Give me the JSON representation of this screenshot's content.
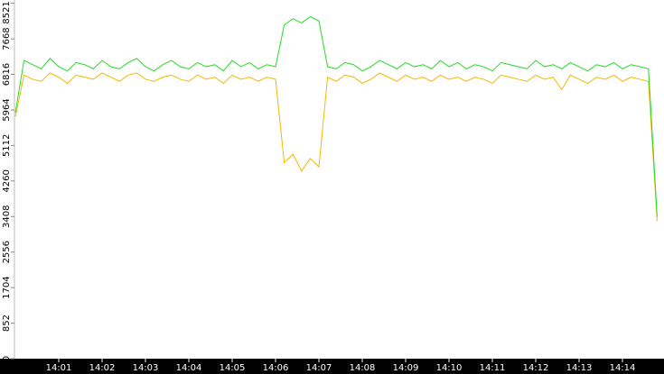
{
  "chart_data": {
    "type": "line",
    "categories": [
      null,
      null,
      null,
      null,
      null,
      "14:01",
      null,
      null,
      null,
      null,
      "14:02",
      null,
      null,
      null,
      null,
      "14:03",
      null,
      null,
      null,
      null,
      "14:04",
      null,
      null,
      null,
      null,
      "14:05",
      null,
      null,
      null,
      null,
      "14:06",
      null,
      null,
      null,
      null,
      "14:07",
      null,
      null,
      null,
      null,
      "14:08",
      null,
      null,
      null,
      null,
      "14:09",
      null,
      null,
      null,
      null,
      "14:10",
      null,
      null,
      null,
      null,
      "14:11",
      null,
      null,
      null,
      null,
      "14:12",
      null,
      null,
      null,
      null,
      "14:13",
      null,
      null,
      null,
      null,
      "14:14",
      null,
      null,
      null,
      null
    ],
    "series": [
      {
        "color": "#f5b800",
        "values": [
          5800,
          6800,
          6700,
          6650,
          6850,
          6750,
          6600,
          6800,
          6750,
          6700,
          6850,
          6750,
          6650,
          6800,
          6850,
          6700,
          6650,
          6750,
          6800,
          6700,
          6650,
          6800,
          6700,
          6750,
          6600,
          6800,
          6700,
          6750,
          6650,
          6750,
          6700,
          4700,
          4900,
          4500,
          4800,
          4600,
          6750,
          6650,
          6800,
          6750,
          6600,
          6700,
          6850,
          6750,
          6650,
          6800,
          6700,
          6750,
          6650,
          6800,
          6700,
          6750,
          6650,
          6750,
          6700,
          6600,
          6800,
          6750,
          6700,
          6650,
          6800,
          6700,
          6750,
          6450,
          6800,
          6700,
          6600,
          6750,
          6700,
          6800,
          6650,
          6750,
          6700,
          6650,
          3300
        ]
      },
      {
        "color": "#22dd22",
        "values": [
          5900,
          7150,
          7050,
          6950,
          7200,
          7000,
          6900,
          7100,
          7050,
          6950,
          7150,
          7000,
          6950,
          7100,
          7200,
          7000,
          6900,
          7050,
          7150,
          7000,
          6950,
          7100,
          7000,
          7050,
          6900,
          7150,
          7000,
          7100,
          6950,
          7050,
          7000,
          8000,
          8150,
          8050,
          8200,
          8100,
          7000,
          6950,
          7100,
          7050,
          6900,
          7000,
          7150,
          7050,
          6950,
          7100,
          7000,
          7050,
          6950,
          7150,
          7000,
          7100,
          6950,
          7050,
          7000,
          6900,
          7100,
          7050,
          7000,
          6950,
          7150,
          7000,
          7050,
          6950,
          7100,
          7000,
          6900,
          7050,
          7000,
          7100,
          6950,
          7050,
          7000,
          6950,
          3400
        ]
      }
    ],
    "ylim": [
      0,
      8600
    ],
    "yticks": [
      0,
      852,
      1704,
      2556,
      3408,
      4260,
      5112,
      5964,
      6816,
      7668,
      8521
    ]
  }
}
